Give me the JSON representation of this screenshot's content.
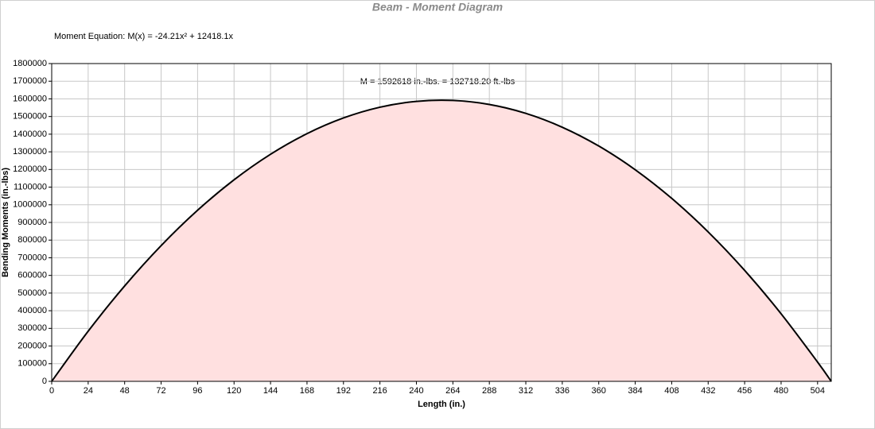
{
  "chart_data": {
    "type": "area",
    "title": "Beam - Moment Diagram",
    "equation": "Moment Equation:  M(x) = -24.21x² + 12418.1x",
    "annotation": "M = 1592618 in.-lbs. = 132718.20 ft.-lbs",
    "x_label": "Length (in.)",
    "y_label": "Bending Moments (in.-lbs)",
    "x": [
      0,
      24,
      48,
      72,
      96,
      120,
      144,
      168,
      192,
      216,
      240,
      264,
      288,
      312,
      336,
      360,
      384,
      408,
      432,
      456,
      480,
      504,
      513
    ],
    "series": [
      {
        "name": "M(x)",
        "color": "#000000",
        "fill": "#ffe0e0",
        "values": [
          0,
          284089,
          540289,
          768599,
          969018,
          1141548,
          1286188,
          1402938,
          1491798,
          1552768,
          1585848,
          1591038,
          1568339,
          1517749,
          1439269,
          1332900,
          1198641,
          1036491,
          846452,
          628523,
          382704,
          108995,
          0
        ]
      }
    ],
    "xlim": [
      0,
      513
    ],
    "xticks": [
      0,
      24,
      48,
      72,
      96,
      120,
      144,
      168,
      192,
      216,
      240,
      264,
      288,
      312,
      336,
      360,
      384,
      408,
      432,
      456,
      480,
      504
    ],
    "ylim": [
      0,
      1800000
    ],
    "yticks": [
      0,
      100000,
      200000,
      300000,
      400000,
      500000,
      600000,
      700000,
      800000,
      900000,
      1000000,
      1100000,
      1200000,
      1300000,
      1400000,
      1500000,
      1600000,
      1700000,
      1800000
    ],
    "grid": true
  }
}
